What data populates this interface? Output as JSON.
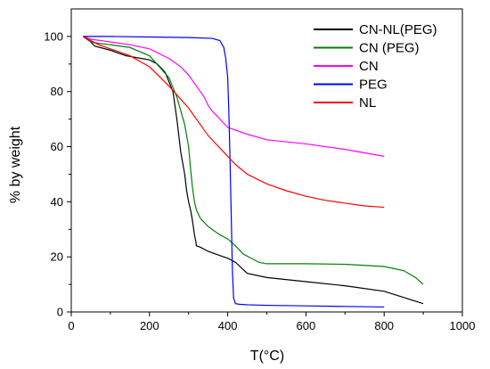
{
  "chart_data": {
    "type": "line",
    "xlabel": "T(°C)",
    "ylabel": "% by weight",
    "xlim": [
      0,
      1000
    ],
    "ylim": [
      0,
      110
    ],
    "xticks": [
      0,
      200,
      400,
      600,
      800,
      1000
    ],
    "yticks": [
      0,
      20,
      40,
      60,
      80,
      100
    ],
    "grid": false,
    "legend": "top-right",
    "series": [
      {
        "name": "CN-NL(PEG)",
        "color": "#000000",
        "x": [
          30,
          50,
          60,
          100,
          140,
          180,
          200,
          220,
          240,
          260,
          270,
          280,
          290,
          295,
          300,
          305,
          310,
          315,
          318,
          320,
          330,
          350,
          380,
          400,
          420,
          450,
          500,
          600,
          700,
          800,
          900
        ],
        "y": [
          100,
          98,
          96.5,
          95,
          93,
          92,
          91.5,
          90,
          87,
          80,
          70,
          58,
          50,
          44,
          40,
          37,
          33,
          28,
          26,
          24,
          23.5,
          22,
          20.5,
          19.5,
          18,
          14,
          12.5,
          11,
          9.5,
          7.5,
          3
        ]
      },
      {
        "name": "CN (PEG)",
        "color": "#008000",
        "x": [
          30,
          50,
          70,
          100,
          150,
          200,
          250,
          270,
          290,
          300,
          305,
          310,
          315,
          320,
          330,
          350,
          380,
          400,
          420,
          440,
          460,
          480,
          500,
          600,
          700,
          800,
          850,
          880,
          900
        ],
        "y": [
          100,
          98,
          97.5,
          97,
          96,
          93,
          85,
          78,
          68,
          60,
          52,
          45,
          40,
          37,
          34,
          31,
          28,
          26.5,
          24,
          21,
          19.5,
          18,
          17.5,
          17.5,
          17.3,
          16.5,
          15,
          12.5,
          10
        ]
      },
      {
        "name": "CN",
        "color": "#ff00ff",
        "x": [
          30,
          50,
          100,
          150,
          200,
          250,
          280,
          300,
          320,
          340,
          350,
          360,
          380,
          400,
          420,
          450,
          500,
          600,
          700,
          800
        ],
        "y": [
          100,
          99,
          98,
          97,
          95.5,
          92,
          89,
          86,
          82,
          78,
          75,
          73,
          70,
          67,
          66,
          64.5,
          62.5,
          61,
          59,
          56.5
        ]
      },
      {
        "name": "PEG",
        "color": "#0000ff",
        "x": [
          30,
          100,
          200,
          300,
          360,
          380,
          390,
          395,
          400,
          403,
          406,
          409,
          412,
          415,
          420,
          430,
          450,
          500,
          600,
          700,
          800
        ],
        "y": [
          100,
          100,
          99.8,
          99.6,
          99.3,
          98.5,
          96,
          92,
          85,
          72,
          55,
          35,
          15,
          5,
          3,
          2.8,
          2.6,
          2.4,
          2.2,
          2.0,
          1.8
        ]
      },
      {
        "name": "NL",
        "color": "#ff0000",
        "x": [
          30,
          50,
          70,
          100,
          150,
          200,
          250,
          300,
          330,
          350,
          380,
          400,
          420,
          450,
          500,
          550,
          600,
          650,
          700,
          750,
          800
        ],
        "y": [
          100,
          98.5,
          97,
          95.5,
          93,
          89,
          82,
          74,
          68,
          64,
          59.5,
          56.5,
          53.5,
          50,
          46.5,
          44,
          42,
          40.5,
          39.5,
          38.5,
          38
        ]
      }
    ]
  }
}
